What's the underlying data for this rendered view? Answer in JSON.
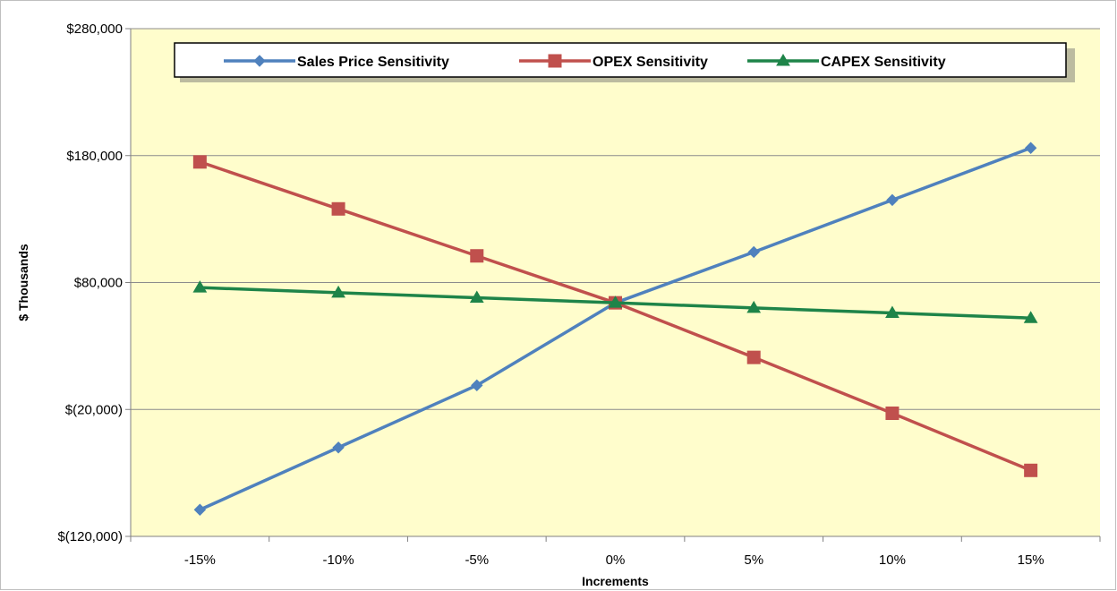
{
  "chart_data": {
    "type": "line",
    "title": "",
    "xlabel": "Increments",
    "ylabel": "$ Thousands",
    "categories": [
      "-15%",
      "-10%",
      "-5%",
      "0%",
      "5%",
      "10%",
      "15%"
    ],
    "ylim": [
      -120000,
      280000
    ],
    "yticks": [
      {
        "value": 280000,
        "label": "$280,000"
      },
      {
        "value": 180000,
        "label": "$180,000"
      },
      {
        "value": 80000,
        "label": "$80,000"
      },
      {
        "value": -20000,
        "label": "$(20,000)"
      },
      {
        "value": -120000,
        "label": "$(120,000)"
      }
    ],
    "grid": true,
    "legend_position": "top",
    "background_color": "#fffdcc",
    "series": [
      {
        "name": "Sales Price Sensitivity",
        "color": "#4f81bd",
        "marker": "diamond",
        "values": [
          -99000,
          -50000,
          -1000,
          64000,
          104000,
          145000,
          186000
        ]
      },
      {
        "name": "OPEX Sensitivity",
        "color": "#c0504d",
        "marker": "square",
        "values": [
          175000,
          138000,
          101000,
          64000,
          21000,
          -23000,
          -68000
        ]
      },
      {
        "name": "CAPEX Sensitivity",
        "color": "#1e8449",
        "marker": "triangle",
        "values": [
          76000,
          72000,
          68000,
          64000,
          60000,
          56000,
          52000
        ]
      }
    ]
  }
}
